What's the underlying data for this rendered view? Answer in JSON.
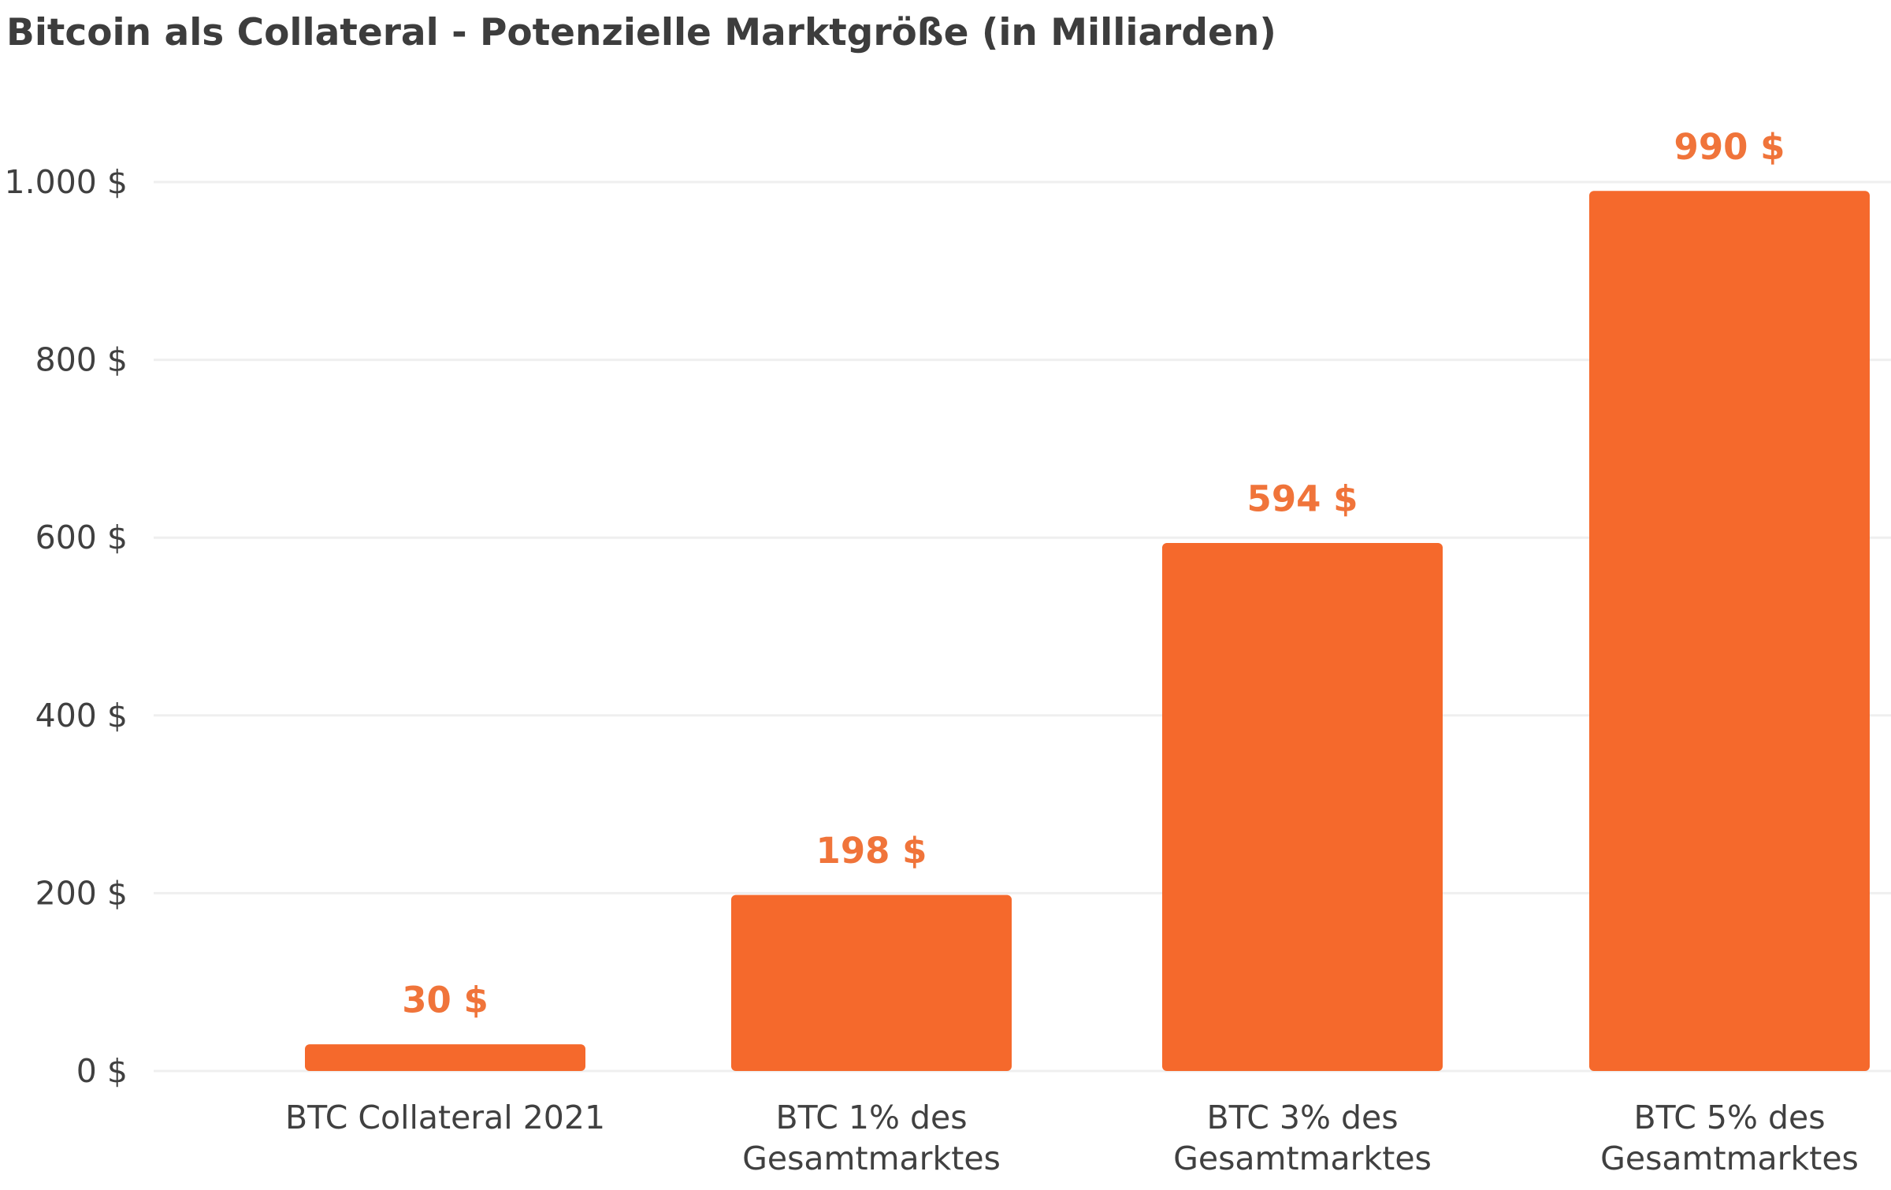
{
  "chart_data": {
    "type": "bar",
    "title": "Bitcoin als Collateral - Potenzielle Marktgröße (in Milliarden)",
    "xlabel": "",
    "ylabel": "",
    "categories": [
      [
        "BTC Collateral 2021"
      ],
      [
        "BTC 1% des",
        "Gesamtmarktes"
      ],
      [
        "BTC 3% des",
        "Gesamtmarktes"
      ],
      [
        "BTC 5% des",
        "Gesamtmarktes"
      ]
    ],
    "values": [
      30,
      198,
      594,
      990
    ],
    "value_labels": [
      "30 $",
      "198 $",
      "594 $",
      "990 $"
    ],
    "ylim": [
      0,
      1000
    ],
    "y_ticks": [
      0,
      200,
      400,
      600,
      800,
      1000
    ],
    "y_tick_labels": [
      "0 $",
      "200 $",
      "400 $",
      "600 $",
      "800 $",
      "1.000 $"
    ],
    "grid": true,
    "legend": "none",
    "colors": {
      "bar": "#f5692c",
      "label": "#f0743a",
      "grid": "#efefef",
      "text": "#404040"
    }
  }
}
